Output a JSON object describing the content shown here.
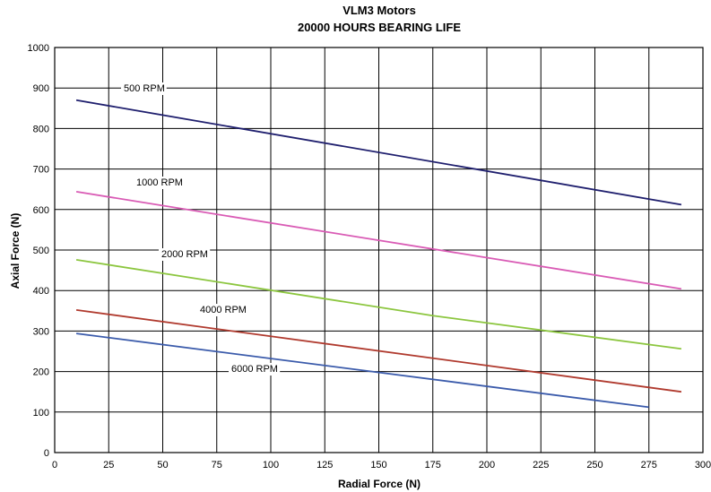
{
  "chart_data": {
    "type": "line",
    "title": "VLM3 Motors",
    "subtitle": "20000 HOURS BEARING LIFE",
    "xlabel": "Radial Force (N)",
    "ylabel": "Axial Force (N)",
    "xlim": [
      0,
      300
    ],
    "ylim": [
      0,
      1000
    ],
    "xticks": [
      0,
      25,
      50,
      75,
      100,
      125,
      150,
      175,
      200,
      225,
      250,
      275,
      300
    ],
    "yticks": [
      0,
      100,
      200,
      300,
      400,
      500,
      600,
      700,
      800,
      900,
      1000
    ],
    "grid": true,
    "legend": "inline labels",
    "series": [
      {
        "name": "500 RPM",
        "color": "#1f1f6e",
        "x": [
          10,
          290
        ],
        "y": [
          870,
          612
        ]
      },
      {
        "name": "1000 RPM",
        "color": "#d95bb5",
        "x": [
          10,
          290
        ],
        "y": [
          644,
          404
        ]
      },
      {
        "name": "2000 RPM",
        "color": "#8cc63f",
        "x": [
          10,
          175,
          290
        ],
        "y": [
          476,
          338,
          256
        ]
      },
      {
        "name": "4000 RPM",
        "color": "#b03a2e",
        "x": [
          10,
          290
        ],
        "y": [
          352,
          150
        ]
      },
      {
        "name": "6000 RPM",
        "color": "#3b5bab",
        "x": [
          10,
          275
        ],
        "y": [
          294,
          112
        ]
      }
    ]
  }
}
